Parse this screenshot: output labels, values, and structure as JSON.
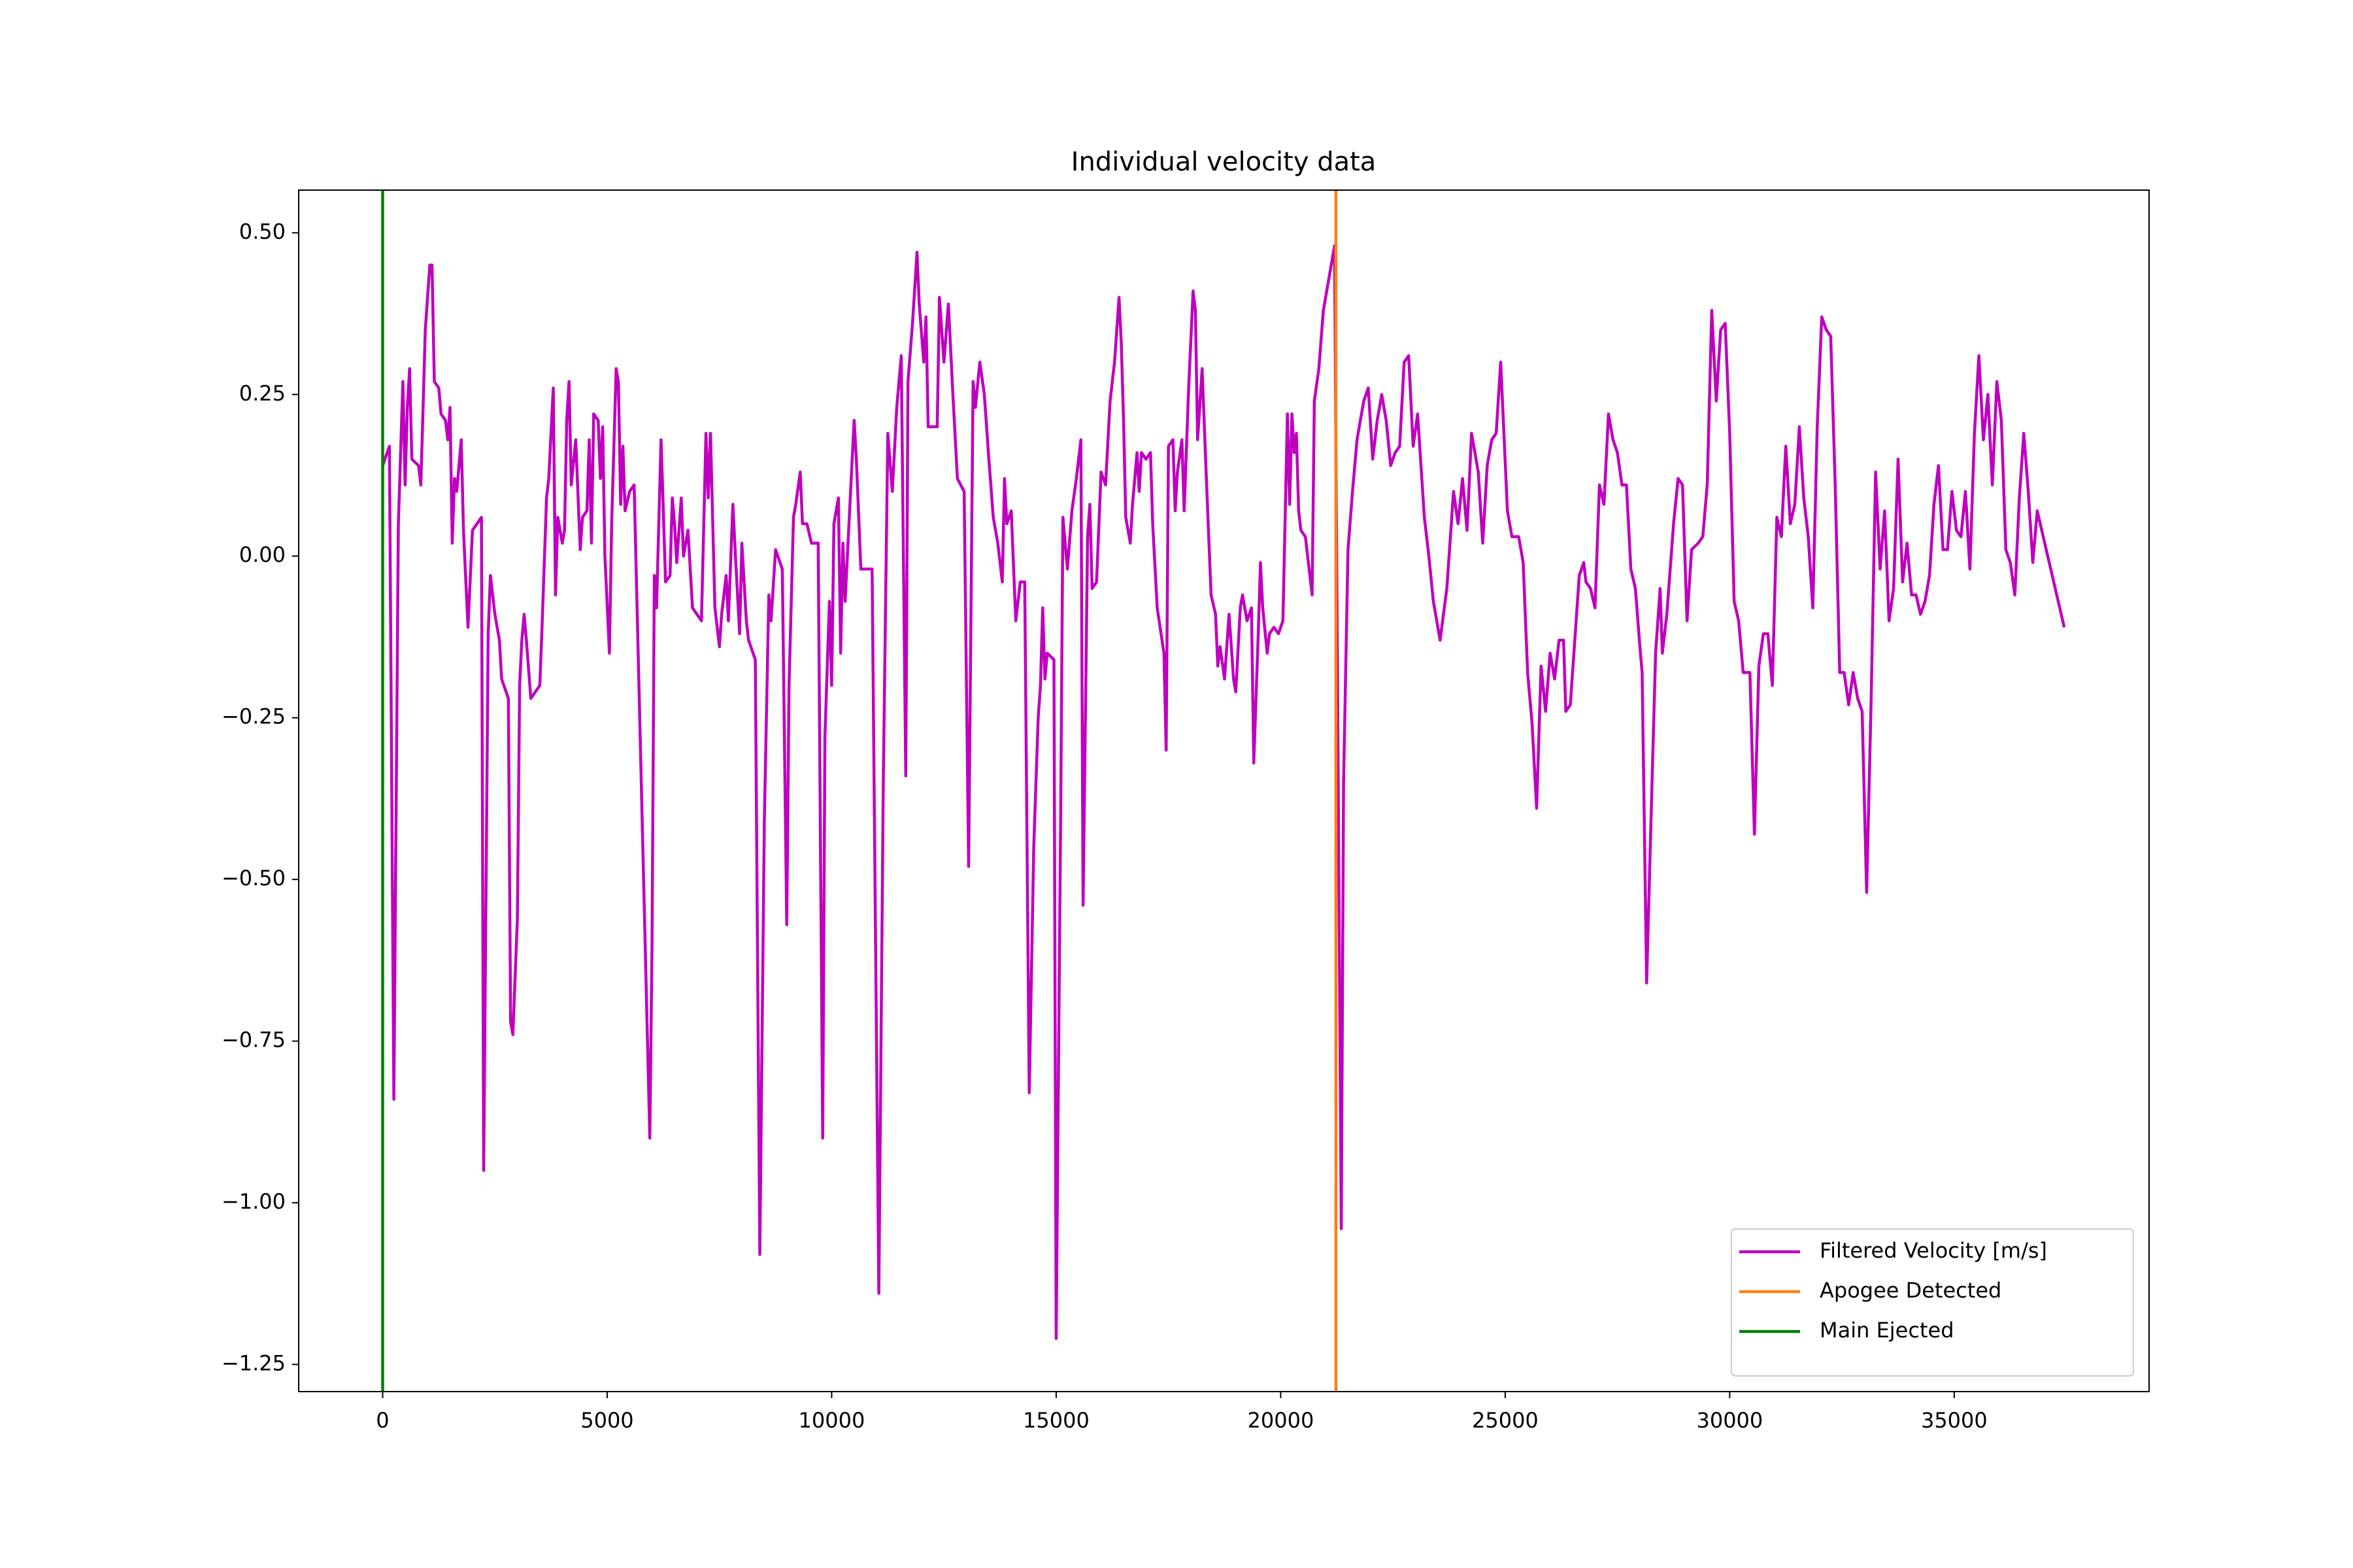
{
  "chart_data": {
    "type": "line",
    "title": "Individual velocity data",
    "x": [
      0,
      150,
      250,
      350,
      450,
      500,
      550,
      600,
      650,
      800,
      850,
      950,
      1050,
      1100,
      1150,
      1250,
      1300,
      1400,
      1450,
      1500,
      1550,
      1600,
      1650,
      1750,
      1800,
      1900,
      2000,
      2200,
      2250,
      2350,
      2400,
      2500,
      2600,
      2650,
      2800,
      2850,
      2900,
      3000,
      3050,
      3100,
      3150,
      3200,
      3300,
      3400,
      3500,
      3550,
      3650,
      3700,
      3800,
      3850,
      3900,
      4000,
      4050,
      4100,
      4150,
      4200,
      4300,
      4400,
      4450,
      4550,
      4600,
      4650,
      4700,
      4800,
      4850,
      4900,
      4950,
      5050,
      5100,
      5200,
      5250,
      5300,
      5350,
      5400,
      5500,
      5600,
      5950,
      6000,
      6050,
      6100,
      6200,
      6300,
      6400,
      6450,
      6500,
      6550,
      6650,
      6700,
      6800,
      6900,
      7100,
      7200,
      7250,
      7300,
      7400,
      7500,
      7550,
      7650,
      7700,
      7800,
      7850,
      7950,
      8000,
      8100,
      8150,
      8300,
      8400,
      8500,
      8600,
      8650,
      8750,
      8800,
      8900,
      9000,
      9050,
      9150,
      9200,
      9300,
      9350,
      9450,
      9550,
      9700,
      9800,
      9850,
      9950,
      10000,
      10050,
      10150,
      10200,
      10250,
      10300,
      10400,
      10500,
      10550,
      10650,
      10900,
      11050,
      11150,
      11250,
      11350,
      11450,
      11550,
      11650,
      11700,
      11800,
      11900,
      11950,
      12050,
      12100,
      12150,
      12350,
      12400,
      12500,
      12600,
      12700,
      12800,
      12950,
      13050,
      13150,
      13200,
      13300,
      13400,
      13500,
      13600,
      13700,
      13800,
      13850,
      13900,
      14000,
      14100,
      14200,
      14300,
      14400,
      14500,
      14600,
      14650,
      14700,
      14750,
      14800,
      14950,
      15000,
      15100,
      15150,
      15250,
      15350,
      15450,
      15550,
      15600,
      15700,
      15750,
      15800,
      15900,
      16000,
      16100,
      16200,
      16300,
      16400,
      16450,
      16500,
      16550,
      16650,
      16700,
      16800,
      16850,
      16900,
      17000,
      17100,
      17150,
      17250,
      17400,
      17450,
      17500,
      17600,
      17650,
      17700,
      17800,
      17850,
      17950,
      18050,
      18100,
      18150,
      18250,
      18350,
      18450,
      18550,
      18600,
      18650,
      18750,
      18850,
      18950,
      19000,
      19100,
      19150,
      19250,
      19350,
      19400,
      19500,
      19550,
      19600,
      19700,
      19750,
      19850,
      19950,
      20050,
      20150,
      20200,
      20250,
      20300,
      20350,
      20400,
      20450,
      20550,
      20700,
      20750,
      20850,
      20950,
      21100,
      21200,
      21350,
      21400,
      21500,
      21600,
      21700,
      21850,
      21950,
      22050,
      22150,
      22250,
      22350,
      22450,
      22550,
      22650,
      22750,
      22850,
      22950,
      23050,
      23200,
      23300,
      23400,
      23550,
      23700,
      23850,
      23950,
      24050,
      24150,
      24250,
      24400,
      24500,
      24600,
      24700,
      24800,
      24900,
      25050,
      25150,
      25300,
      25400,
      25500,
      25600,
      25700,
      25800,
      25900,
      26000,
      26100,
      26200,
      26300,
      26350,
      26450,
      26550,
      26650,
      26750,
      26800,
      26900,
      27000,
      27100,
      27200,
      27300,
      27400,
      27500,
      27600,
      27700,
      27800,
      27900,
      28000,
      28050,
      28150,
      28250,
      28350,
      28450,
      28500,
      28600,
      28750,
      28850,
      28950,
      29050,
      29150,
      29300,
      29400,
      29500,
      29600,
      29700,
      29800,
      29900,
      30000,
      30100,
      30200,
      30300,
      30450,
      30550,
      30650,
      30750,
      30850,
      30950,
      31050,
      31150,
      31250,
      31350,
      31450,
      31550,
      31650,
      31750,
      31850,
      31950,
      32050,
      32150,
      32250,
      32350,
      32450,
      32550,
      32650,
      32750,
      32850,
      32950,
      33050,
      33150,
      33250,
      33350,
      33450,
      33550,
      33650,
      33750,
      33850,
      33950,
      34050,
      34150,
      34250,
      34350,
      34450,
      34550,
      34650,
      34750,
      34850,
      34950,
      35050,
      35150,
      35250,
      35350,
      35450,
      35550,
      35650,
      35750,
      35850,
      35950,
      36050,
      36150,
      36250,
      36350,
      36450,
      36550,
      36650,
      36750,
      36850,
      37450
    ],
    "series": [
      {
        "name": "Filtered Velocity [m/s]",
        "color": "#bf00bf",
        "values": [
          0.14,
          0.17,
          -0.84,
          0.05,
          0.27,
          0.11,
          0.23,
          0.29,
          0.15,
          0.14,
          0.11,
          0.35,
          0.45,
          0.45,
          0.27,
          0.26,
          0.22,
          0.21,
          0.18,
          0.23,
          0.02,
          0.12,
          0.1,
          0.18,
          0.04,
          -0.11,
          0.04,
          0.06,
          -0.95,
          -0.12,
          -0.03,
          -0.09,
          -0.13,
          -0.19,
          -0.22,
          -0.72,
          -0.74,
          -0.56,
          -0.2,
          -0.13,
          -0.09,
          -0.13,
          -0.22,
          -0.21,
          -0.2,
          -0.11,
          0.09,
          0.12,
          0.26,
          -0.06,
          0.06,
          0.02,
          0.04,
          0.21,
          0.27,
          0.11,
          0.18,
          0.01,
          0.06,
          0.07,
          0.18,
          0.02,
          0.22,
          0.21,
          0.12,
          0.2,
          0.0,
          -0.15,
          0.05,
          0.29,
          0.27,
          0.08,
          0.17,
          0.07,
          0.1,
          0.11,
          -0.9,
          -0.6,
          -0.03,
          -0.08,
          0.18,
          -0.04,
          -0.03,
          0.09,
          0.05,
          -0.01,
          0.09,
          0.0,
          0.04,
          -0.08,
          -0.1,
          0.19,
          0.09,
          0.19,
          -0.08,
          -0.14,
          -0.09,
          -0.03,
          -0.1,
          0.08,
          0.01,
          -0.12,
          0.02,
          -0.1,
          -0.13,
          -0.16,
          -1.08,
          -0.41,
          -0.06,
          -0.1,
          0.01,
          0.0,
          -0.02,
          -0.57,
          -0.2,
          0.06,
          0.08,
          0.13,
          0.05,
          0.05,
          0.02,
          0.02,
          -0.9,
          -0.28,
          -0.07,
          -0.2,
          0.05,
          0.09,
          -0.15,
          0.02,
          -0.07,
          0.07,
          0.21,
          0.15,
          -0.02,
          -0.02,
          -1.14,
          -0.35,
          0.19,
          0.1,
          0.23,
          0.31,
          -0.34,
          0.27,
          0.36,
          0.47,
          0.39,
          0.3,
          0.37,
          0.2,
          0.2,
          0.4,
          0.3,
          0.39,
          0.25,
          0.12,
          0.1,
          -0.48,
          0.27,
          0.23,
          0.3,
          0.25,
          0.15,
          0.06,
          0.02,
          -0.04,
          0.12,
          0.05,
          0.07,
          -0.1,
          -0.04,
          -0.04,
          -0.83,
          -0.45,
          -0.25,
          -0.2,
          -0.08,
          -0.19,
          -0.15,
          -0.16,
          -1.21,
          -0.4,
          0.06,
          -0.02,
          0.07,
          0.12,
          0.18,
          -0.54,
          0.03,
          0.08,
          -0.05,
          -0.04,
          0.13,
          0.11,
          0.24,
          0.3,
          0.4,
          0.33,
          0.21,
          0.06,
          0.02,
          0.08,
          0.16,
          0.1,
          0.16,
          0.15,
          0.16,
          0.05,
          -0.08,
          -0.15,
          -0.3,
          0.17,
          0.18,
          0.07,
          0.13,
          0.18,
          0.07,
          0.26,
          0.41,
          0.38,
          0.18,
          0.29,
          0.11,
          -0.06,
          -0.09,
          -0.17,
          -0.14,
          -0.19,
          -0.09,
          -0.19,
          -0.21,
          -0.08,
          -0.06,
          -0.1,
          -0.08,
          -0.32,
          -0.12,
          -0.01,
          -0.08,
          -0.15,
          -0.12,
          -0.11,
          -0.12,
          -0.1,
          0.22,
          0.08,
          0.22,
          0.16,
          0.19,
          0.07,
          0.04,
          0.03,
          -0.06,
          0.24,
          0.29,
          0.38,
          0.44,
          0.48,
          -1.04,
          -0.35,
          0.01,
          0.1,
          0.18,
          0.24,
          0.26,
          0.15,
          0.21,
          0.25,
          0.21,
          0.14,
          0.16,
          0.17,
          0.3,
          0.31,
          0.17,
          0.22,
          0.06,
          0.0,
          -0.07,
          -0.13,
          -0.05,
          0.1,
          0.05,
          0.12,
          0.04,
          0.19,
          0.13,
          0.02,
          0.14,
          0.18,
          0.19,
          0.3,
          0.07,
          0.03,
          0.03,
          -0.01,
          -0.18,
          -0.26,
          -0.39,
          -0.17,
          -0.24,
          -0.15,
          -0.19,
          -0.13,
          -0.13,
          -0.24,
          -0.23,
          -0.13,
          -0.03,
          -0.01,
          -0.04,
          -0.05,
          -0.08,
          0.11,
          0.08,
          0.22,
          0.18,
          0.16,
          0.11,
          0.11,
          -0.02,
          -0.05,
          -0.14,
          -0.18,
          -0.66,
          -0.4,
          -0.15,
          -0.05,
          -0.15,
          -0.09,
          0.05,
          0.12,
          0.11,
          -0.1,
          0.01,
          0.02,
          0.03,
          0.11,
          0.38,
          0.24,
          0.35,
          0.36,
          0.19,
          -0.07,
          -0.1,
          -0.18,
          -0.18,
          -0.43,
          -0.17,
          -0.12,
          -0.12,
          -0.2,
          0.06,
          0.03,
          0.17,
          0.05,
          0.08,
          0.2,
          0.09,
          0.03,
          -0.08,
          0.2,
          0.37,
          0.35,
          0.34,
          0.11,
          -0.18,
          -0.18,
          -0.23,
          -0.18,
          -0.22,
          -0.24,
          -0.52,
          -0.22,
          0.13,
          -0.02,
          0.07,
          -0.1,
          -0.05,
          0.15,
          -0.04,
          0.02,
          -0.06,
          -0.06,
          -0.09,
          -0.07,
          -0.03,
          0.08,
          0.14,
          0.01,
          0.01,
          0.1,
          0.04,
          0.03,
          0.1,
          -0.02,
          0.19,
          0.31,
          0.18,
          0.25,
          0.11,
          0.27,
          0.21,
          0.01,
          -0.01,
          -0.06,
          0.09,
          0.19,
          0.1,
          -0.01,
          0.07,
          -0.11
        ]
      }
    ],
    "vlines": [
      {
        "name": "Apogee Detected",
        "color": "#ff7f0e",
        "x": 21230
      },
      {
        "name": "Main Ejected",
        "color": "#008000",
        "x": 0
      }
    ],
    "xlim": [
      -1870,
      39340
    ],
    "ylim": [
      -1.292,
      0.566
    ],
    "xticks": [
      0,
      5000,
      10000,
      15000,
      20000,
      25000,
      30000,
      35000
    ],
    "yticks": [
      {
        "value": 0.5,
        "label": "0.50"
      },
      {
        "value": 0.25,
        "label": "0.25"
      },
      {
        "value": 0,
        "label": "0.00"
      },
      {
        "value": -0.25,
        "label": "−0.25"
      },
      {
        "value": -0.5,
        "label": "−0.50"
      },
      {
        "value": -0.75,
        "label": "−0.75"
      },
      {
        "value": -1,
        "label": "−1.00"
      },
      {
        "value": -1.25,
        "label": "−1.25"
      }
    ],
    "legend_loc": "lower right"
  }
}
